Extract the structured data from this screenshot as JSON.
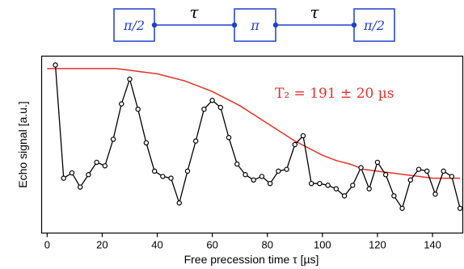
{
  "sequence": {
    "pulses": [
      "π/2",
      "π",
      "π/2"
    ],
    "delays": [
      "τ",
      "τ"
    ],
    "color": "#1f3fd0"
  },
  "chart_data": {
    "type": "line",
    "xlabel": "Free precession time τ  [µs]",
    "ylabel": "Echo signal [a.u.]",
    "xlim": [
      -2,
      151
    ],
    "ylim": [
      0,
      1
    ],
    "xticks": [
      "0",
      "20",
      "40",
      "60",
      "80",
      "100",
      "120",
      "140"
    ],
    "grid": false,
    "annotation": "T₂ = 191 ± 20 µs",
    "series": [
      {
        "kind": "data",
        "color": "#000000",
        "marker": "open-circle",
        "x": [
          3,
          6,
          9,
          12,
          15,
          18,
          21,
          24,
          27,
          30,
          33,
          36,
          39,
          42,
          45,
          48,
          51,
          54,
          57,
          60,
          63,
          66,
          69,
          72,
          75,
          78,
          81,
          84,
          87,
          90,
          93,
          96,
          99,
          102,
          105,
          108,
          111,
          114,
          117,
          120,
          123,
          126,
          129,
          132,
          135,
          138,
          141,
          144,
          147,
          150
        ],
        "y": [
          0.95,
          0.31,
          0.34,
          0.26,
          0.33,
          0.4,
          0.38,
          0.53,
          0.73,
          0.87,
          0.7,
          0.51,
          0.35,
          0.32,
          0.31,
          0.17,
          0.35,
          0.52,
          0.7,
          0.75,
          0.71,
          0.54,
          0.39,
          0.33,
          0.3,
          0.32,
          0.28,
          0.35,
          0.36,
          0.5,
          0.55,
          0.28,
          0.28,
          0.27,
          0.25,
          0.21,
          0.27,
          0.37,
          0.25,
          0.4,
          0.33,
          0.21,
          0.14,
          0.3,
          0.36,
          0.35,
          0.22,
          0.35,
          0.32,
          0.14
        ]
      },
      {
        "kind": "fit",
        "color": "#e8302a",
        "x": [
          0,
          5,
          10,
          15,
          20,
          25,
          30,
          35,
          40,
          45,
          50,
          55,
          60,
          65,
          70,
          75,
          80,
          85,
          90,
          95,
          100,
          105,
          110,
          115,
          120,
          125,
          130,
          135,
          140,
          145,
          150
        ],
        "y": [
          0.93,
          0.93,
          0.93,
          0.93,
          0.93,
          0.93,
          0.92,
          0.91,
          0.9,
          0.88,
          0.86,
          0.83,
          0.8,
          0.76,
          0.72,
          0.67,
          0.62,
          0.57,
          0.52,
          0.48,
          0.44,
          0.41,
          0.39,
          0.36,
          0.35,
          0.34,
          0.33,
          0.32,
          0.31,
          0.31,
          0.31
        ]
      }
    ]
  }
}
